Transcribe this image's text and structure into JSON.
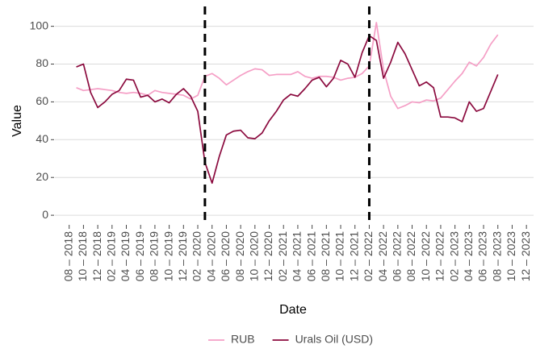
{
  "chart_data": {
    "type": "line",
    "x_label": "Date",
    "y_label": "Value",
    "x": [
      "2018-09",
      "2018-10",
      "2018-11",
      "2018-12",
      "2019-01",
      "2019-02",
      "2019-03",
      "2019-04",
      "2019-05",
      "2019-06",
      "2019-07",
      "2019-08",
      "2019-09",
      "2019-10",
      "2019-11",
      "2019-12",
      "2020-01",
      "2020-02",
      "2020-03",
      "2020-04",
      "2020-05",
      "2020-06",
      "2020-07",
      "2020-08",
      "2020-09",
      "2020-10",
      "2020-11",
      "2020-12",
      "2021-01",
      "2021-02",
      "2021-03",
      "2021-04",
      "2021-05",
      "2021-06",
      "2021-07",
      "2021-08",
      "2021-09",
      "2021-10",
      "2021-11",
      "2021-12",
      "2022-01",
      "2022-02",
      "2022-03",
      "2022-04",
      "2022-05",
      "2022-06",
      "2022-07",
      "2022-08",
      "2022-09",
      "2022-10",
      "2022-11",
      "2022-12",
      "2023-01",
      "2023-02",
      "2023-03",
      "2023-04",
      "2023-05",
      "2023-06",
      "2023-07",
      "2023-08"
    ],
    "series": [
      {
        "name": "RUB",
        "color": "#f59fc6",
        "values": [
          67.5,
          66,
          66.5,
          67,
          66.5,
          66,
          65,
          64.5,
          65,
          64.5,
          63.5,
          66,
          65,
          64.5,
          64,
          63.5,
          61.5,
          63.5,
          73.5,
          75,
          72.5,
          69,
          71.5,
          74,
          76,
          77.5,
          77,
          74,
          74.5,
          74.5,
          74.5,
          76,
          73.5,
          72.5,
          73.5,
          73.5,
          73,
          71.5,
          72.5,
          73,
          75,
          79,
          102,
          77,
          63,
          56.5,
          58,
          60,
          59.5,
          61,
          60.5,
          62,
          66.5,
          71,
          75,
          81,
          79,
          83.5,
          90.5,
          95.5
        ]
      },
      {
        "name": "Urals Oil (USD)",
        "color": "#8b0a3e",
        "values": [
          78.5,
          80,
          65,
          57,
          60,
          64,
          66,
          72,
          71.5,
          62.5,
          63.5,
          60,
          61.5,
          59.5,
          64,
          67,
          63,
          55,
          28,
          17,
          31,
          42.5,
          44.5,
          45,
          41,
          40.5,
          43.5,
          50,
          55,
          61,
          64,
          63,
          67,
          71.5,
          73,
          68,
          72.5,
          82,
          80,
          73,
          86,
          95,
          92.5,
          72.5,
          81,
          91.5,
          85.5,
          77,
          68.5,
          70.5,
          67.5,
          52,
          52,
          51.5,
          49.5,
          60,
          55,
          56.5,
          65.5,
          74.5
        ]
      }
    ],
    "vlines": [
      "2020-03",
      "2022-02"
    ],
    "xlim": [
      "2018-06",
      "2024-01"
    ],
    "xticks": [
      {
        "value": "2018-08",
        "label": "08 – 2018"
      },
      {
        "value": "2018-10",
        "label": "10 – 2018"
      },
      {
        "value": "2018-12",
        "label": "12 – 2018"
      },
      {
        "value": "2019-02",
        "label": "02 – 2019"
      },
      {
        "value": "2019-04",
        "label": "04 – 2019"
      },
      {
        "value": "2019-06",
        "label": "06 – 2019"
      },
      {
        "value": "2019-08",
        "label": "08 – 2019"
      },
      {
        "value": "2019-10",
        "label": "10 – 2019"
      },
      {
        "value": "2019-12",
        "label": "12 – 2019"
      },
      {
        "value": "2020-02",
        "label": "02 – 2020"
      },
      {
        "value": "2020-04",
        "label": "04 – 2020"
      },
      {
        "value": "2020-06",
        "label": "06 – 2020"
      },
      {
        "value": "2020-08",
        "label": "08 – 2020"
      },
      {
        "value": "2020-10",
        "label": "10 – 2020"
      },
      {
        "value": "2020-12",
        "label": "12 – 2020"
      },
      {
        "value": "2021-02",
        "label": "02 – 2021"
      },
      {
        "value": "2021-04",
        "label": "04 – 2021"
      },
      {
        "value": "2021-06",
        "label": "06 – 2021"
      },
      {
        "value": "2021-08",
        "label": "08 – 2021"
      },
      {
        "value": "2021-10",
        "label": "10 – 2021"
      },
      {
        "value": "2021-12",
        "label": "12 – 2021"
      },
      {
        "value": "2022-02",
        "label": "02 – 2022"
      },
      {
        "value": "2022-04",
        "label": "04 – 2022"
      },
      {
        "value": "2022-06",
        "label": "06 – 2022"
      },
      {
        "value": "2022-08",
        "label": "08 – 2022"
      },
      {
        "value": "2022-10",
        "label": "10 – 2022"
      },
      {
        "value": "2022-12",
        "label": "12 – 2022"
      },
      {
        "value": "2023-02",
        "label": "02 – 2023"
      },
      {
        "value": "2023-04",
        "label": "04 – 2023"
      },
      {
        "value": "2023-06",
        "label": "06 – 2023"
      },
      {
        "value": "2023-08",
        "label": "08 – 2023"
      },
      {
        "value": "2023-10",
        "label": "10 – 2023"
      },
      {
        "value": "2023-12",
        "label": "12 – 2023"
      }
    ],
    "ylim": [
      -5.5,
      110.5
    ],
    "yticks": [
      0,
      20,
      40,
      60,
      80,
      100
    ],
    "grid": true,
    "legend": "bottom"
  }
}
